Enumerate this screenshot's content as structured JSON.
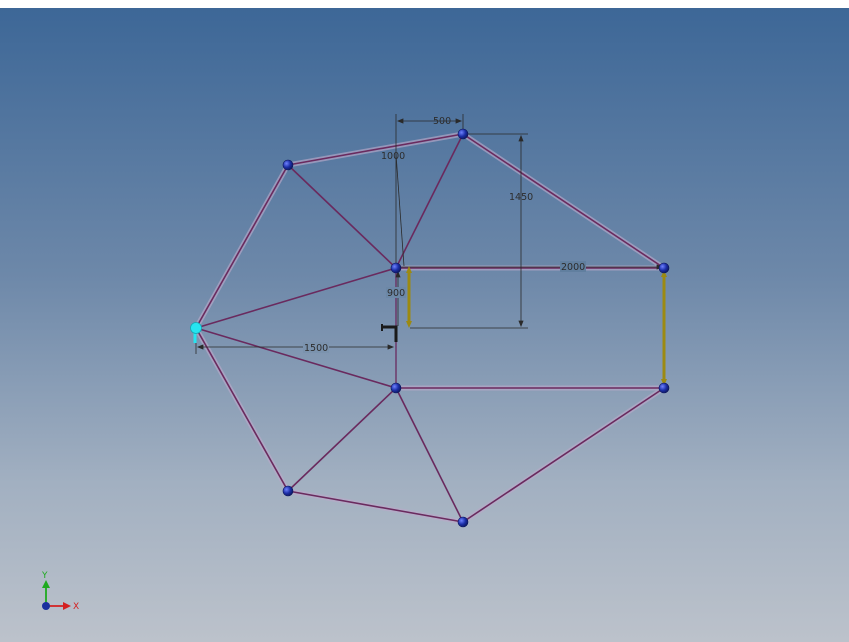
{
  "viewport": {
    "dimensions": [
      "500",
      "1000",
      "1450",
      "2000",
      "900",
      "1500"
    ]
  },
  "triad": {
    "x_label": "X",
    "y_label": "Y",
    "x_color": "#d42020",
    "y_color": "#1faa1f",
    "origin_color": "#1a2f9e"
  },
  "colors": {
    "member": "#6a2a5e",
    "member_halo": "#b9a9c9",
    "node": "#1c2fa8",
    "support": "#27e4f0",
    "load": "#9c8a12",
    "dimension": "#2a2a2a"
  }
}
